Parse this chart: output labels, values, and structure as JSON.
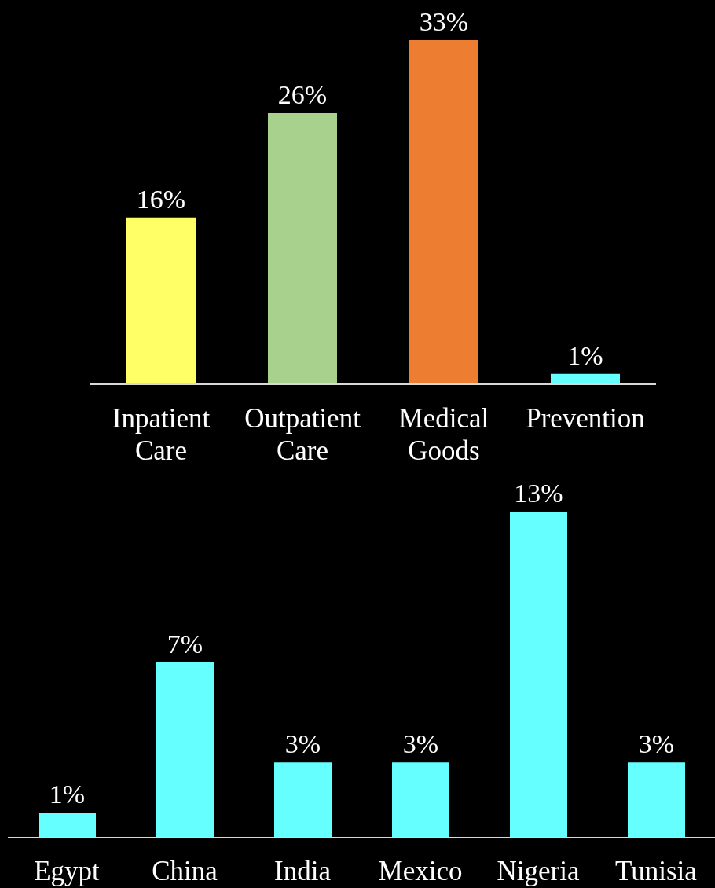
{
  "chart_data": [
    {
      "type": "bar",
      "categories": [
        "Inpatient Care",
        "Outpatient Care",
        "Medical Goods",
        "Prevention"
      ],
      "values": [
        16,
        26,
        33,
        1
      ],
      "colors": [
        "#ffff66",
        "#a9d18e",
        "#ed7d31",
        "#66ffff"
      ],
      "value_labels": [
        "16%",
        "26%",
        "33%",
        "1%"
      ]
    },
    {
      "type": "bar",
      "categories": [
        "Egypt",
        "China",
        "India",
        "Mexico",
        "Nigeria",
        "Tunisia"
      ],
      "values": [
        1,
        7,
        3,
        3,
        13,
        3
      ],
      "color": "#66ffff",
      "value_labels": [
        "1%",
        "7%",
        "3%",
        "3%",
        "13%",
        "3%"
      ]
    }
  ]
}
